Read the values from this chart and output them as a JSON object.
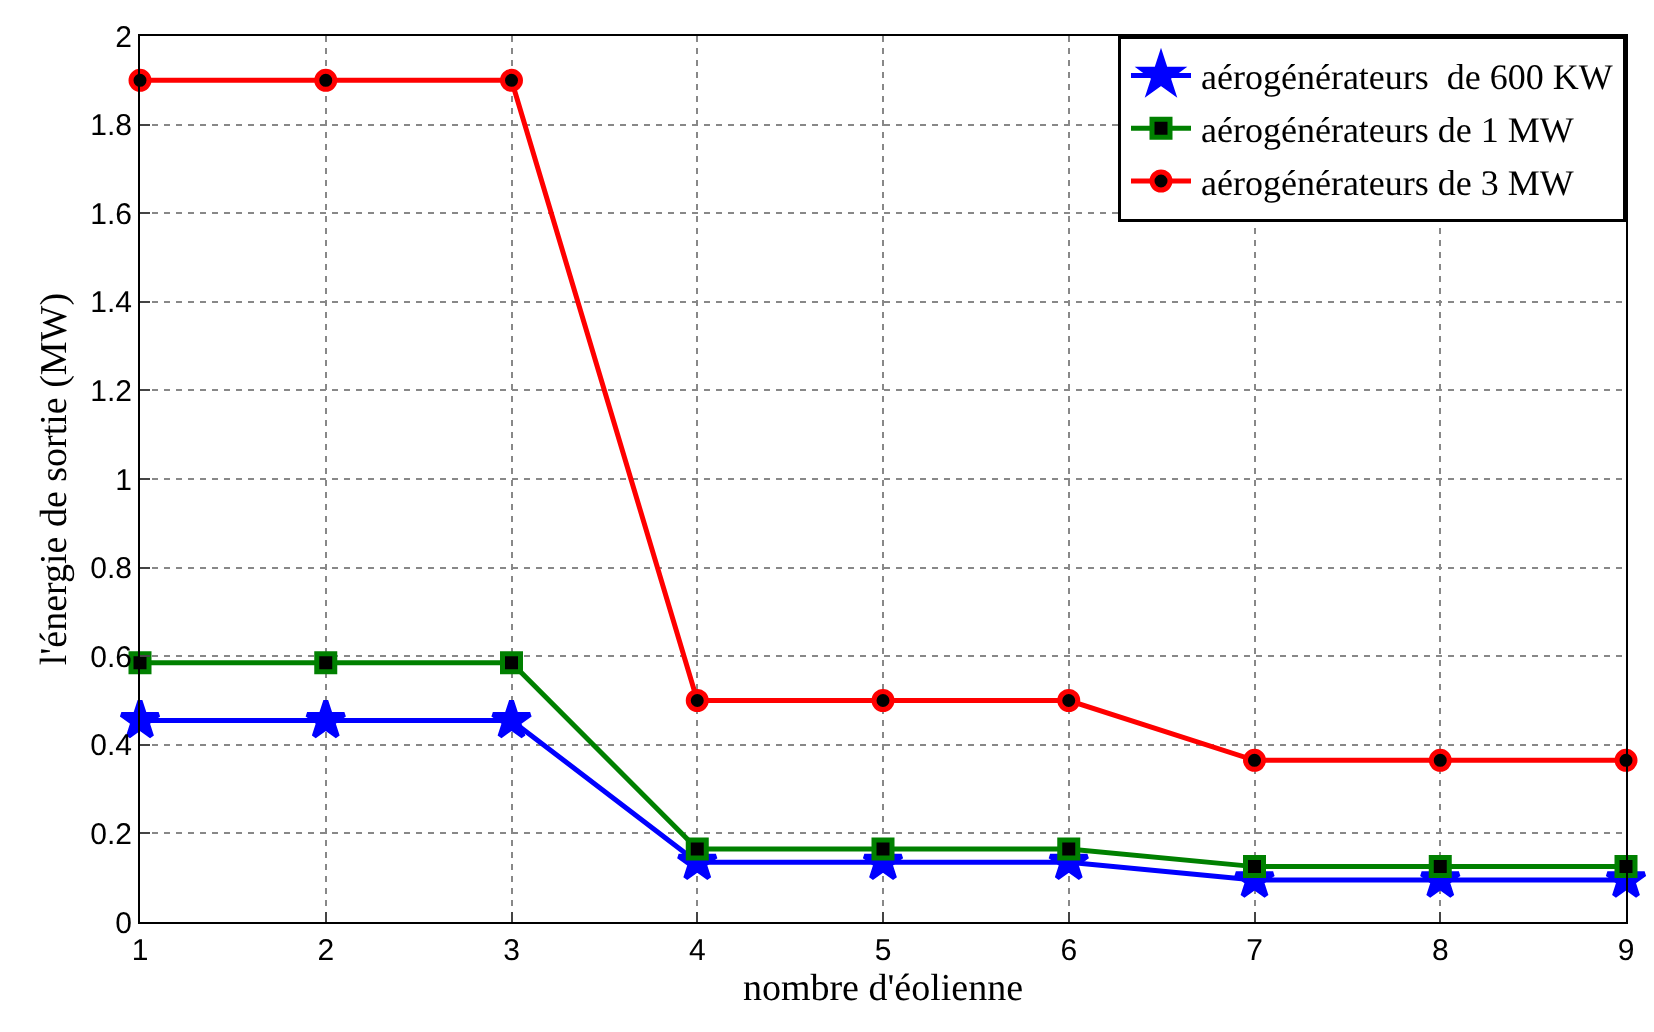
{
  "chart_data": {
    "type": "line",
    "xlabel": "nombre d'éolienne",
    "ylabel": "l'énergie de sortie (MW)",
    "x": [
      1,
      2,
      3,
      4,
      5,
      6,
      7,
      8,
      9
    ],
    "series": [
      {
        "name": "aérogénérateurs  de 600 KW",
        "color": "#0000ff",
        "marker": "star",
        "values": [
          0.455,
          0.455,
          0.455,
          0.135,
          0.135,
          0.135,
          0.095,
          0.095,
          0.095
        ]
      },
      {
        "name": "aérogénérateurs de 1 MW",
        "color": "#008000",
        "marker": "square",
        "values": [
          0.585,
          0.585,
          0.585,
          0.165,
          0.165,
          0.165,
          0.125,
          0.125,
          0.125
        ]
      },
      {
        "name": "aérogénérateurs de 3 MW",
        "color": "#ff0000",
        "marker": "circle",
        "values": [
          1.9,
          1.9,
          1.9,
          0.5,
          0.5,
          0.5,
          0.365,
          0.365,
          0.365
        ]
      }
    ],
    "xlim": [
      1,
      9
    ],
    "xticks": [
      1,
      2,
      3,
      4,
      5,
      6,
      7,
      8,
      9
    ],
    "ylim": [
      0,
      2
    ],
    "yticks": [
      0,
      0.2,
      0.4,
      0.6,
      0.8,
      1,
      1.2,
      1.4,
      1.6,
      1.8,
      2
    ],
    "grid": true,
    "legend": "top right",
    "line_style": "solid"
  }
}
